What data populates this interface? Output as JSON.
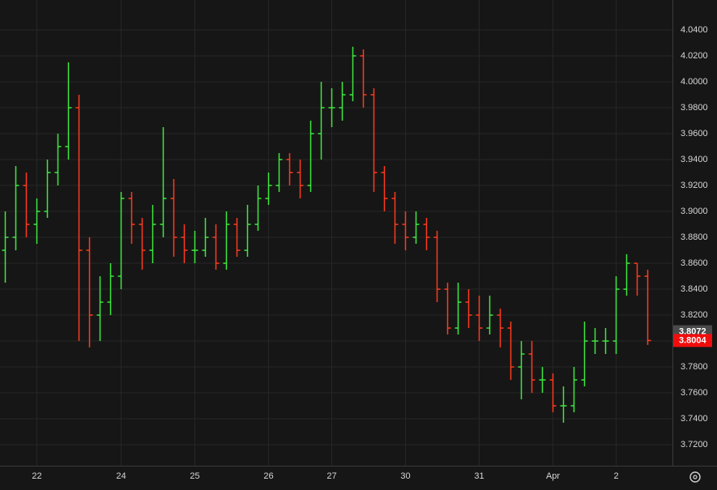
{
  "chart_data": {
    "type": "ohlc",
    "categories": [
      null,
      null,
      null,
      "22",
      null,
      null,
      null,
      null,
      null,
      null,
      null,
      "24",
      null,
      null,
      null,
      null,
      null,
      null,
      "25",
      null,
      null,
      null,
      null,
      null,
      null,
      "26",
      null,
      null,
      null,
      null,
      null,
      "27",
      null,
      null,
      null,
      null,
      null,
      null,
      "30",
      null,
      null,
      null,
      null,
      null,
      null,
      "31",
      null,
      null,
      null,
      null,
      null,
      null,
      "Apr",
      null,
      null,
      null,
      null,
      null,
      "2",
      null,
      null,
      null
    ],
    "open": [
      3.87,
      3.88,
      3.92,
      3.89,
      3.9,
      3.93,
      3.95,
      3.98,
      3.87,
      3.82,
      3.83,
      3.85,
      3.91,
      3.89,
      3.87,
      3.89,
      3.91,
      3.88,
      3.87,
      3.87,
      3.88,
      3.86,
      3.89,
      3.87,
      3.89,
      3.91,
      3.92,
      3.94,
      3.93,
      3.92,
      3.96,
      3.98,
      3.98,
      3.99,
      4.02,
      3.99,
      3.93,
      3.91,
      3.89,
      3.88,
      3.89,
      3.88,
      3.84,
      3.81,
      3.83,
      3.82,
      3.81,
      3.82,
      3.81,
      3.78,
      3.79,
      3.77,
      3.77,
      3.75,
      3.75,
      3.77,
      3.8,
      3.8,
      3.8,
      3.84,
      3.86,
      3.85
    ],
    "high": [
      3.9,
      3.935,
      3.93,
      3.91,
      3.94,
      3.96,
      4.015,
      3.99,
      3.88,
      3.85,
      3.86,
      3.915,
      3.915,
      3.895,
      3.905,
      3.965,
      3.925,
      3.89,
      3.885,
      3.895,
      3.89,
      3.9,
      3.895,
      3.905,
      3.92,
      3.93,
      3.945,
      3.945,
      3.94,
      3.97,
      4.0,
      3.995,
      4.0,
      4.027,
      4.025,
      3.995,
      3.935,
      3.915,
      3.9,
      3.9,
      3.895,
      3.885,
      3.845,
      3.845,
      3.84,
      3.835,
      3.835,
      3.825,
      3.815,
      3.8,
      3.8,
      3.78,
      3.775,
      3.765,
      3.78,
      3.815,
      3.81,
      3.81,
      3.85,
      3.867,
      3.86,
      3.855
    ],
    "low": [
      3.845,
      3.87,
      3.88,
      3.875,
      3.895,
      3.92,
      3.94,
      3.8,
      3.795,
      3.8,
      3.82,
      3.84,
      3.875,
      3.855,
      3.86,
      3.88,
      3.865,
      3.86,
      3.86,
      3.865,
      3.855,
      3.855,
      3.865,
      3.865,
      3.885,
      3.905,
      3.915,
      3.92,
      3.91,
      3.915,
      3.94,
      3.965,
      3.97,
      3.985,
      3.98,
      3.915,
      3.9,
      3.875,
      3.87,
      3.875,
      3.87,
      3.83,
      3.805,
      3.805,
      3.81,
      3.8,
      3.805,
      3.795,
      3.77,
      3.755,
      3.76,
      3.76,
      3.745,
      3.737,
      3.745,
      3.765,
      3.79,
      3.79,
      3.79,
      3.835,
      3.835,
      3.797
    ],
    "close": [
      3.88,
      3.92,
      3.89,
      3.9,
      3.93,
      3.95,
      3.98,
      3.87,
      3.82,
      3.83,
      3.85,
      3.91,
      3.89,
      3.87,
      3.89,
      3.91,
      3.88,
      3.87,
      3.87,
      3.88,
      3.86,
      3.89,
      3.87,
      3.89,
      3.91,
      3.92,
      3.94,
      3.93,
      3.92,
      3.96,
      3.98,
      3.98,
      3.99,
      4.02,
      3.99,
      3.93,
      3.91,
      3.89,
      3.88,
      3.89,
      3.88,
      3.84,
      3.81,
      3.83,
      3.82,
      3.81,
      3.82,
      3.81,
      3.78,
      3.79,
      3.77,
      3.77,
      3.75,
      3.75,
      3.77,
      3.8,
      3.8,
      3.8,
      3.84,
      3.86,
      3.85,
      3.8004
    ],
    "up_color": "#3ee83e",
    "down_color": "#ff3a1c",
    "ylim": [
      3.7038,
      4.0631
    ],
    "yticks": [
      {
        "value": 3.72,
        "label": "3.7200"
      },
      {
        "value": 3.74,
        "label": "3.7400"
      },
      {
        "value": 3.76,
        "label": "3.7600"
      },
      {
        "value": 3.78,
        "label": "3.7800"
      },
      {
        "value": 3.8,
        "label": "3.8000"
      },
      {
        "value": 3.82,
        "label": "3.8200"
      },
      {
        "value": 3.84,
        "label": "3.8400"
      },
      {
        "value": 3.86,
        "label": "3.8600"
      },
      {
        "value": 3.88,
        "label": "3.8800"
      },
      {
        "value": 3.9,
        "label": "3.9000"
      },
      {
        "value": 3.92,
        "label": "3.9200"
      },
      {
        "value": 3.94,
        "label": "3.9400"
      },
      {
        "value": 3.96,
        "label": "3.9600"
      },
      {
        "value": 3.98,
        "label": "3.9800"
      },
      {
        "value": 4.0,
        "label": "4.0000"
      },
      {
        "value": 4.02,
        "label": "4.0200"
      },
      {
        "value": 4.04,
        "label": "4.0400"
      }
    ],
    "grid": true,
    "price_markers": [
      {
        "value": 3.8072,
        "color": "#4a4a4a"
      },
      {
        "value": 3.8004,
        "color": "#f20d0d"
      }
    ]
  }
}
